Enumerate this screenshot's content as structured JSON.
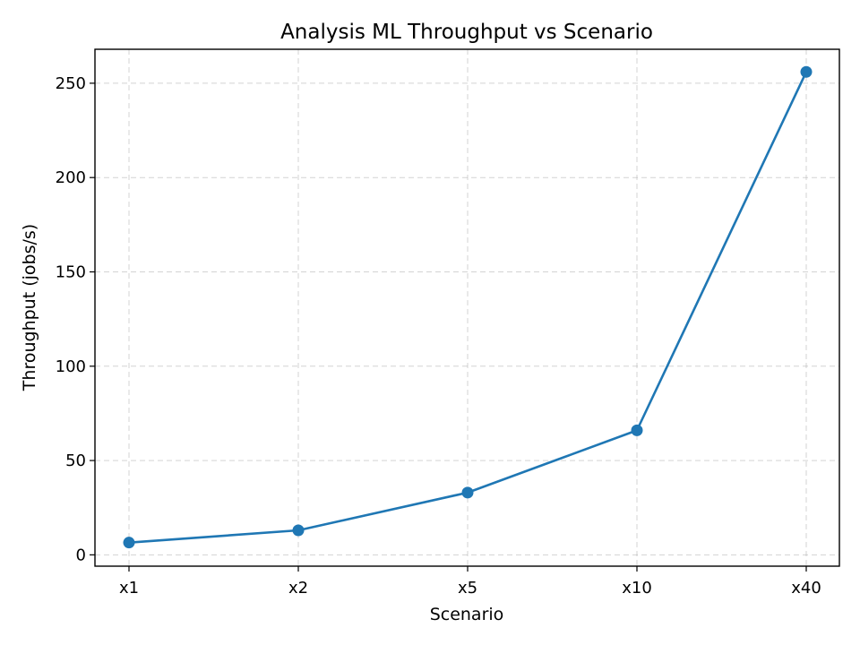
{
  "chart_data": {
    "type": "line",
    "title": "Analysis ML Throughput vs Scenario",
    "xlabel": "Scenario",
    "ylabel": "Throughput (jobs/s)",
    "categories": [
      "x1",
      "x2",
      "x5",
      "x10",
      "x40"
    ],
    "series": [
      {
        "values": [
          6.5,
          13,
          33,
          66,
          256
        ]
      }
    ],
    "ylim": [
      -6,
      268
    ],
    "yticks": [
      0,
      50,
      100,
      150,
      200,
      250
    ],
    "grid": true,
    "marker": "circle",
    "colors": {
      "line": "#1f77b4",
      "grid": "#b0b0b0"
    }
  }
}
